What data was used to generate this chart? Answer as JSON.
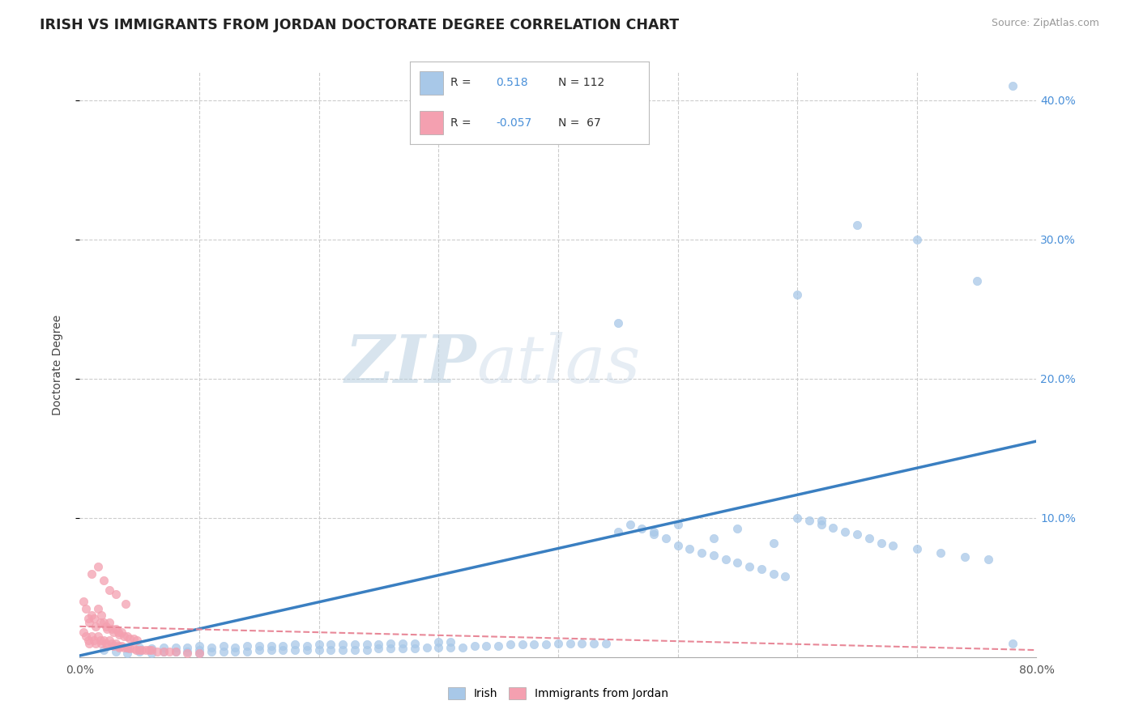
{
  "title": "IRISH VS IMMIGRANTS FROM JORDAN DOCTORATE DEGREE CORRELATION CHART",
  "source": "Source: ZipAtlas.com",
  "ylabel": "Doctorate Degree",
  "xlim": [
    0,
    0.8
  ],
  "ylim": [
    0,
    0.42
  ],
  "irish_R": 0.518,
  "irish_N": 112,
  "jordan_R": -0.057,
  "jordan_N": 67,
  "irish_color": "#a8c8e8",
  "jordan_color": "#f4a0b0",
  "irish_line_color": "#3a7fc1",
  "jordan_line_color": "#e88898",
  "irish_line_x0": 0.0,
  "irish_line_y0": 0.001,
  "irish_line_x1": 0.8,
  "irish_line_y1": 0.155,
  "jordan_line_x0": 0.0,
  "jordan_line_y0": 0.022,
  "jordan_line_x1": 0.8,
  "jordan_line_y1": 0.005,
  "irish_scatter_x": [
    0.02,
    0.03,
    0.04,
    0.04,
    0.05,
    0.05,
    0.06,
    0.06,
    0.07,
    0.07,
    0.08,
    0.08,
    0.09,
    0.09,
    0.1,
    0.1,
    0.1,
    0.11,
    0.11,
    0.12,
    0.12,
    0.13,
    0.13,
    0.14,
    0.14,
    0.15,
    0.15,
    0.16,
    0.16,
    0.17,
    0.17,
    0.18,
    0.18,
    0.19,
    0.19,
    0.2,
    0.2,
    0.21,
    0.21,
    0.22,
    0.22,
    0.23,
    0.23,
    0.24,
    0.24,
    0.25,
    0.25,
    0.26,
    0.26,
    0.27,
    0.27,
    0.28,
    0.28,
    0.29,
    0.3,
    0.3,
    0.31,
    0.31,
    0.32,
    0.33,
    0.34,
    0.35,
    0.36,
    0.37,
    0.38,
    0.39,
    0.4,
    0.41,
    0.42,
    0.43,
    0.44,
    0.45,
    0.46,
    0.47,
    0.48,
    0.49,
    0.5,
    0.51,
    0.52,
    0.53,
    0.54,
    0.55,
    0.56,
    0.57,
    0.58,
    0.59,
    0.6,
    0.61,
    0.62,
    0.63,
    0.64,
    0.65,
    0.66,
    0.67,
    0.68,
    0.7,
    0.72,
    0.74,
    0.76,
    0.78,
    0.5,
    0.55,
    0.6,
    0.45,
    0.65,
    0.7,
    0.53,
    0.58,
    0.62,
    0.48,
    0.78,
    0.75
  ],
  "irish_scatter_y": [
    0.005,
    0.004,
    0.003,
    0.006,
    0.004,
    0.007,
    0.003,
    0.006,
    0.004,
    0.007,
    0.004,
    0.007,
    0.004,
    0.007,
    0.003,
    0.005,
    0.008,
    0.004,
    0.007,
    0.004,
    0.008,
    0.004,
    0.007,
    0.004,
    0.008,
    0.005,
    0.008,
    0.005,
    0.008,
    0.005,
    0.008,
    0.005,
    0.009,
    0.005,
    0.008,
    0.005,
    0.009,
    0.005,
    0.009,
    0.005,
    0.009,
    0.005,
    0.009,
    0.005,
    0.009,
    0.006,
    0.009,
    0.006,
    0.01,
    0.006,
    0.01,
    0.006,
    0.01,
    0.007,
    0.007,
    0.011,
    0.007,
    0.011,
    0.007,
    0.008,
    0.008,
    0.008,
    0.009,
    0.009,
    0.009,
    0.009,
    0.01,
    0.01,
    0.01,
    0.01,
    0.01,
    0.09,
    0.095,
    0.092,
    0.088,
    0.085,
    0.08,
    0.078,
    0.075,
    0.073,
    0.07,
    0.068,
    0.065,
    0.063,
    0.06,
    0.058,
    0.1,
    0.098,
    0.095,
    0.093,
    0.09,
    0.088,
    0.085,
    0.082,
    0.08,
    0.078,
    0.075,
    0.072,
    0.07,
    0.01,
    0.095,
    0.092,
    0.26,
    0.24,
    0.31,
    0.3,
    0.085,
    0.082,
    0.098,
    0.09,
    0.41,
    0.27
  ],
  "jordan_scatter_x": [
    0.003,
    0.003,
    0.005,
    0.005,
    0.007,
    0.007,
    0.008,
    0.008,
    0.01,
    0.01,
    0.01,
    0.012,
    0.012,
    0.013,
    0.013,
    0.015,
    0.015,
    0.015,
    0.017,
    0.017,
    0.018,
    0.018,
    0.02,
    0.02,
    0.02,
    0.022,
    0.022,
    0.023,
    0.023,
    0.025,
    0.025,
    0.025,
    0.027,
    0.027,
    0.028,
    0.028,
    0.03,
    0.03,
    0.03,
    0.032,
    0.032,
    0.033,
    0.033,
    0.035,
    0.035,
    0.037,
    0.037,
    0.038,
    0.04,
    0.04,
    0.042,
    0.042,
    0.045,
    0.045,
    0.047,
    0.048,
    0.05,
    0.052,
    0.055,
    0.058,
    0.06,
    0.065,
    0.07,
    0.075,
    0.08,
    0.09,
    0.1
  ],
  "jordan_scatter_y": [
    0.018,
    0.04,
    0.015,
    0.035,
    0.012,
    0.028,
    0.01,
    0.025,
    0.015,
    0.03,
    0.06,
    0.012,
    0.028,
    0.01,
    0.022,
    0.015,
    0.035,
    0.065,
    0.012,
    0.025,
    0.01,
    0.03,
    0.012,
    0.025,
    0.055,
    0.01,
    0.022,
    0.008,
    0.02,
    0.012,
    0.025,
    0.048,
    0.01,
    0.02,
    0.008,
    0.018,
    0.01,
    0.02,
    0.045,
    0.008,
    0.018,
    0.007,
    0.016,
    0.008,
    0.018,
    0.007,
    0.015,
    0.038,
    0.007,
    0.015,
    0.006,
    0.013,
    0.006,
    0.013,
    0.005,
    0.012,
    0.005,
    0.005,
    0.005,
    0.005,
    0.005,
    0.004,
    0.004,
    0.004,
    0.004,
    0.003,
    0.003
  ]
}
